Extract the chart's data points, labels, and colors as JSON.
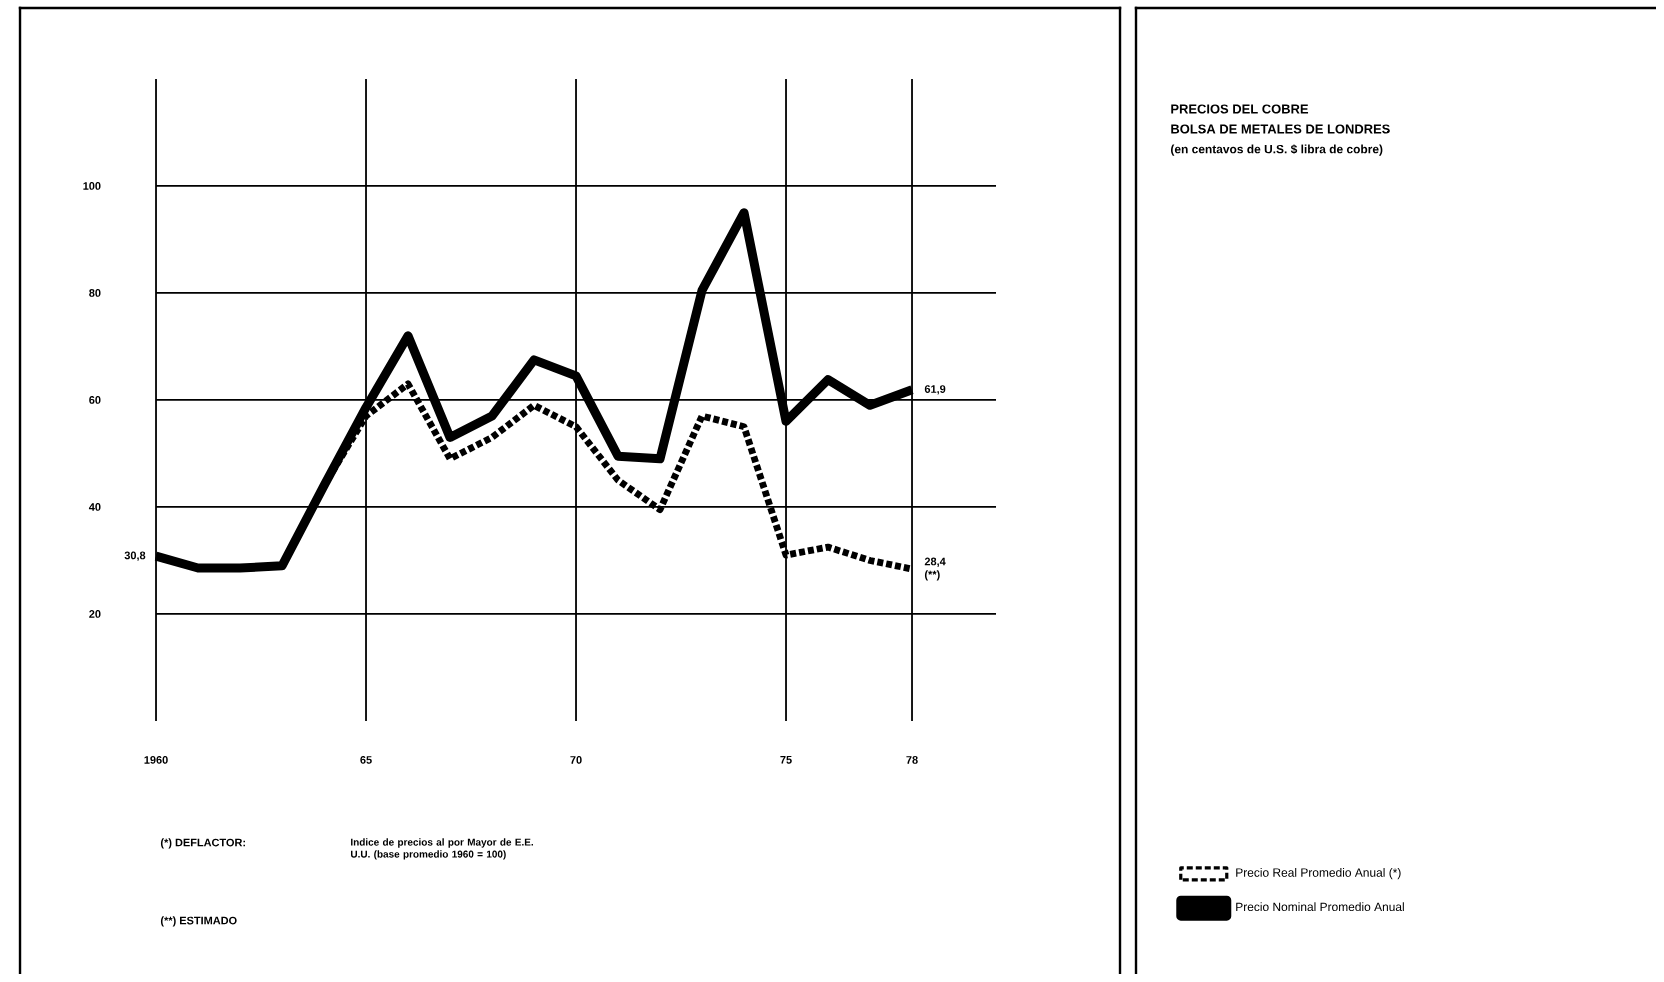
{
  "chart_data": {
    "type": "line",
    "title": "PRECIOS DEL COBRE",
    "subtitle": "BOLSA DE METALES DE LONDRES",
    "annotations": [
      "(en centavos de U.S. $ libra de cobre)",
      "(*) DEFLACTOR:",
      "Indice de precios al por Mayor de E.E. U.U. (base promedio 1960 = 100)",
      "(**) ESTIMADO"
    ],
    "x": [
      1960,
      1961,
      1962,
      1963,
      1964,
      1965,
      1966,
      1967,
      1968,
      1969,
      1970,
      1971,
      1972,
      1973,
      1974,
      1975,
      1976,
      1977,
      1978
    ],
    "series": [
      {
        "name": "Precio Real Promedio Anual (*)",
        "color": "#000000",
        "line_style": "dotted",
        "values": [
          30.8,
          28.6,
          28.6,
          29,
          44,
          57,
          63,
          49,
          53,
          59,
          55,
          45,
          39.5,
          57,
          55,
          31,
          32.5,
          30,
          28.4
        ],
        "value_labels": [
          "30,8",
          null,
          null,
          null,
          null,
          null,
          null,
          null,
          null,
          null,
          null,
          null,
          null,
          null,
          null,
          null,
          null,
          null,
          "28,4 (**)"
        ]
      },
      {
        "name": "Precio Nominal Promedio Anual",
        "color": "#000000",
        "line_style": "solid",
        "values": [
          30.8,
          28.6,
          28.6,
          29,
          44,
          58.6,
          72,
          53,
          57,
          67.5,
          64.5,
          49.5,
          49,
          80.5,
          95,
          56,
          63.8,
          59,
          61.9
        ],
        "value_labels": [
          null,
          null,
          null,
          null,
          null,
          null,
          null,
          null,
          null,
          null,
          null,
          null,
          null,
          null,
          null,
          null,
          null,
          null,
          "61,9"
        ]
      }
    ],
    "xlim": [
      1960,
      1980
    ],
    "xticks": [
      {
        "value": 1960,
        "label": "1960"
      },
      {
        "value": 1965,
        "label": "65"
      },
      {
        "value": 1970,
        "label": "70"
      },
      {
        "value": 1975,
        "label": "75"
      },
      {
        "value": 1978,
        "label": "78"
      }
    ],
    "ylim": [
      0,
      120
    ],
    "yticks": [
      20,
      40,
      60,
      80,
      100
    ],
    "grid": true,
    "legend": "right"
  }
}
